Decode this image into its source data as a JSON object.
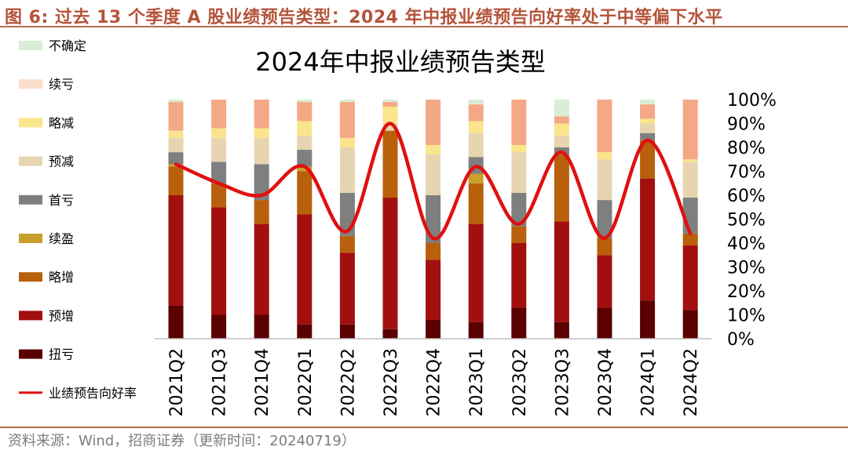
{
  "figure_title": "图 6:  过去 13 个季度 A 股业绩预告类型：2024 年中报业绩预告向好率处于中等偏下水平",
  "source": "资料来源：Wind，招商证券（更新时间：20240719）",
  "chart_data": {
    "type": "bar",
    "stacked": true,
    "title": "2024年中报业绩预告类型",
    "categories": [
      "2021Q2",
      "2021Q3",
      "2021Q4",
      "2022Q1",
      "2022Q2",
      "2022Q3",
      "2022Q4",
      "2023Q1",
      "2023Q2",
      "2023Q3",
      "2023Q4",
      "2024Q1",
      "2024Q2"
    ],
    "y_ticks": [
      "0%",
      "10%",
      "20%",
      "30%",
      "40%",
      "50%",
      "60%",
      "70%",
      "80%",
      "90%",
      "100%"
    ],
    "ylim": [
      0,
      100
    ],
    "legend_position": "left",
    "series": [
      {
        "name": "扭亏",
        "color": "#5a0000",
        "values": [
          14,
          10,
          10,
          6,
          6,
          4,
          8,
          7,
          13,
          7,
          13,
          16,
          12
        ]
      },
      {
        "name": "预增",
        "color": "#a30e0e",
        "values": [
          46,
          45,
          38,
          46,
          30,
          55,
          25,
          41,
          27,
          42,
          22,
          51,
          27
        ]
      },
      {
        "name": "略增",
        "color": "#b8600c",
        "values": [
          12,
          10,
          10,
          18,
          7,
          28,
          7,
          17,
          7,
          28,
          7,
          16,
          5
        ]
      },
      {
        "name": "续盈",
        "color": "#c8a02a",
        "values": [
          1,
          0,
          0,
          2,
          0,
          0,
          0,
          4,
          0,
          0,
          0,
          0,
          0
        ]
      },
      {
        "name": "首亏",
        "color": "#7f7f7f",
        "values": [
          5,
          9,
          15,
          7,
          18,
          0,
          20,
          7,
          14,
          3,
          16,
          3,
          15
        ]
      },
      {
        "name": "预减",
        "color": "#e6d5b0",
        "values": [
          6,
          10,
          11,
          6,
          19,
          3,
          17,
          10,
          17,
          5,
          17,
          4,
          15
        ]
      },
      {
        "name": "略减",
        "color": "#fbe58c",
        "values": [
          3,
          4,
          4,
          6,
          4,
          7,
          4,
          5,
          3,
          5,
          3,
          2,
          1
        ]
      },
      {
        "name": "续亏",
        "color": "#f4a886",
        "values": [
          12,
          12,
          12,
          8,
          15,
          2,
          19,
          7,
          19,
          3,
          22,
          6,
          25
        ]
      },
      {
        "name": "不确定",
        "color": "#daedd6",
        "values": [
          1,
          0,
          0,
          1,
          1,
          1,
          0,
          2,
          0,
          7,
          0,
          2,
          0
        ]
      }
    ],
    "line": {
      "name": "业绩预告向好率",
      "color": "#e01010",
      "values": [
        73,
        65,
        60,
        72,
        45,
        90,
        42,
        72,
        48,
        78,
        42,
        83,
        44
      ]
    },
    "legend": [
      {
        "name": "不确定",
        "color": "#daedd6",
        "kind": "box"
      },
      {
        "name": "续亏",
        "color": "#fcdccb",
        "kind": "box"
      },
      {
        "name": "略减",
        "color": "#fbe58c",
        "kind": "box"
      },
      {
        "name": "预减",
        "color": "#e6d5b0",
        "kind": "box"
      },
      {
        "name": "首亏",
        "color": "#7f7f7f",
        "kind": "box"
      },
      {
        "name": "续盈",
        "color": "#c8a02a",
        "kind": "box"
      },
      {
        "name": "略增",
        "color": "#b8600c",
        "kind": "box"
      },
      {
        "name": "预增",
        "color": "#a30e0e",
        "kind": "box"
      },
      {
        "name": "扭亏",
        "color": "#5a0000",
        "kind": "box"
      },
      {
        "name": "业绩预告向好率",
        "color": "#e01010",
        "kind": "line"
      }
    ]
  }
}
